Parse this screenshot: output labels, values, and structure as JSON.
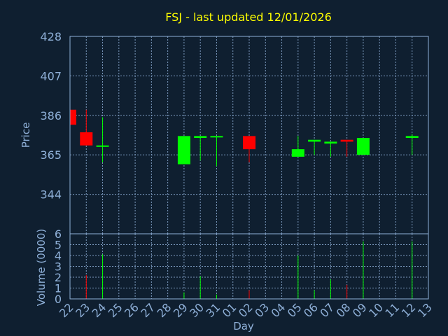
{
  "chart_data": {
    "type": "candlestick",
    "title": "FSJ - last updated 12/01/2026",
    "xlabel": "Day",
    "x_tick_labels": [
      "22",
      "23",
      "24",
      "25",
      "26",
      "27",
      "28",
      "29",
      "30",
      "31",
      "01",
      "02",
      "03",
      "04",
      "05",
      "06",
      "07",
      "08",
      "09",
      "10",
      "11",
      "12",
      "13"
    ],
    "price_panel": {
      "ylabel": "Price",
      "ylim": [
        323,
        428
      ],
      "y_ticks": [
        428,
        407,
        386,
        365,
        344
      ],
      "grid": true
    },
    "volume_panel": {
      "ylabel": "Volume (0000)",
      "ylim": [
        0,
        6
      ],
      "y_ticks": [
        0,
        1,
        2,
        3,
        4,
        5,
        6
      ],
      "grid": true
    },
    "colors": {
      "up": "#00ff00",
      "down": "#ff0000",
      "title": "#ffff00",
      "axis": "#8fb0d8",
      "background": "#0f1f30"
    },
    "candles": [
      {
        "day": "22",
        "open": 389,
        "high": 389,
        "low": 381,
        "close": 381,
        "volume": 0
      },
      {
        "day": "23",
        "open": 377,
        "high": 389,
        "low": 370,
        "close": 370,
        "volume": 2.2
      },
      {
        "day": "24",
        "open": 370,
        "high": 385,
        "low": 361,
        "close": 370,
        "volume": 4.1
      },
      {
        "day": "29",
        "open": 360,
        "high": 375,
        "low": 360,
        "close": 375,
        "volume": 0.6
      },
      {
        "day": "30",
        "open": 374,
        "high": 375,
        "low": 362,
        "close": 375,
        "volume": 2.1
      },
      {
        "day": "31",
        "open": 375,
        "high": 375,
        "low": 359,
        "close": 375,
        "volume": 0.4
      },
      {
        "day": "02",
        "open": 375,
        "high": 375,
        "low": 361,
        "close": 368,
        "volume": 0.8
      },
      {
        "day": "05",
        "open": 364,
        "high": 375,
        "low": 364,
        "close": 368,
        "volume": 4.0
      },
      {
        "day": "06",
        "open": 372,
        "high": 373,
        "low": 365,
        "close": 373,
        "volume": 0.8
      },
      {
        "day": "07",
        "open": 371,
        "high": 372,
        "low": 364,
        "close": 372,
        "volume": 1.8
      },
      {
        "day": "08",
        "open": 373,
        "high": 373,
        "low": 364,
        "close": 372,
        "volume": 1.3
      },
      {
        "day": "09",
        "open": 365,
        "high": 374,
        "low": 365,
        "close": 374,
        "volume": 5.3
      },
      {
        "day": "12",
        "open": 374,
        "high": 376,
        "low": 365,
        "close": 375,
        "volume": 5.3
      }
    ]
  }
}
